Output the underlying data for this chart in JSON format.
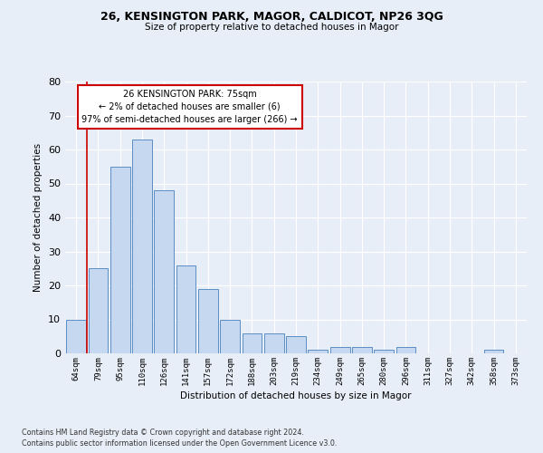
{
  "title1": "26, KENSINGTON PARK, MAGOR, CALDICOT, NP26 3QG",
  "title2": "Size of property relative to detached houses in Magor",
  "xlabel": "Distribution of detached houses by size in Magor",
  "ylabel": "Number of detached properties",
  "categories": [
    "64sqm",
    "79sqm",
    "95sqm",
    "110sqm",
    "126sqm",
    "141sqm",
    "157sqm",
    "172sqm",
    "188sqm",
    "203sqm",
    "219sqm",
    "234sqm",
    "249sqm",
    "265sqm",
    "280sqm",
    "296sqm",
    "311sqm",
    "327sqm",
    "342sqm",
    "358sqm",
    "373sqm"
  ],
  "values": [
    10,
    25,
    55,
    63,
    48,
    26,
    19,
    10,
    6,
    6,
    5,
    1,
    2,
    2,
    1,
    2,
    0,
    0,
    0,
    1,
    0
  ],
  "bar_color": "#c5d8f0",
  "bar_edge_color": "#5b8ec4",
  "background_color": "#e8eef8",
  "grid_color": "#ffffff",
  "vline_color": "#cc0000",
  "annotation_text": "26 KENSINGTON PARK: 75sqm\n← 2% of detached houses are smaller (6)\n97% of semi-detached houses are larger (266) →",
  "annotation_box_color": "#ffffff",
  "annotation_box_edge": "#cc0000",
  "ylim": [
    0,
    80
  ],
  "yticks": [
    0,
    10,
    20,
    30,
    40,
    50,
    60,
    70,
    80
  ],
  "footer1": "Contains HM Land Registry data © Crown copyright and database right 2024.",
  "footer2": "Contains public sector information licensed under the Open Government Licence v3.0."
}
